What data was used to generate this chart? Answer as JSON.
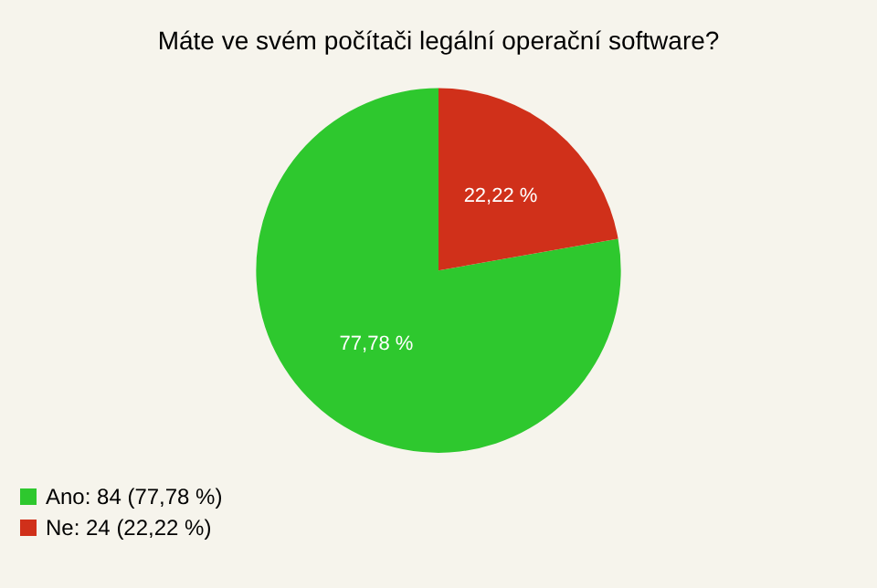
{
  "chart_data": {
    "type": "pie",
    "title": "Máte ve svém počítači legální operační software?",
    "categories": [
      "Ano: 84 (77,78 %)",
      "Ne: 24 (22,22 %)"
    ],
    "values": [
      77.78,
      22.22
    ],
    "value_labels": [
      "77,78 %",
      "22,22 %"
    ],
    "colors": [
      "#2ec82e",
      "#d0301a"
    ],
    "legend": "bottom left"
  }
}
